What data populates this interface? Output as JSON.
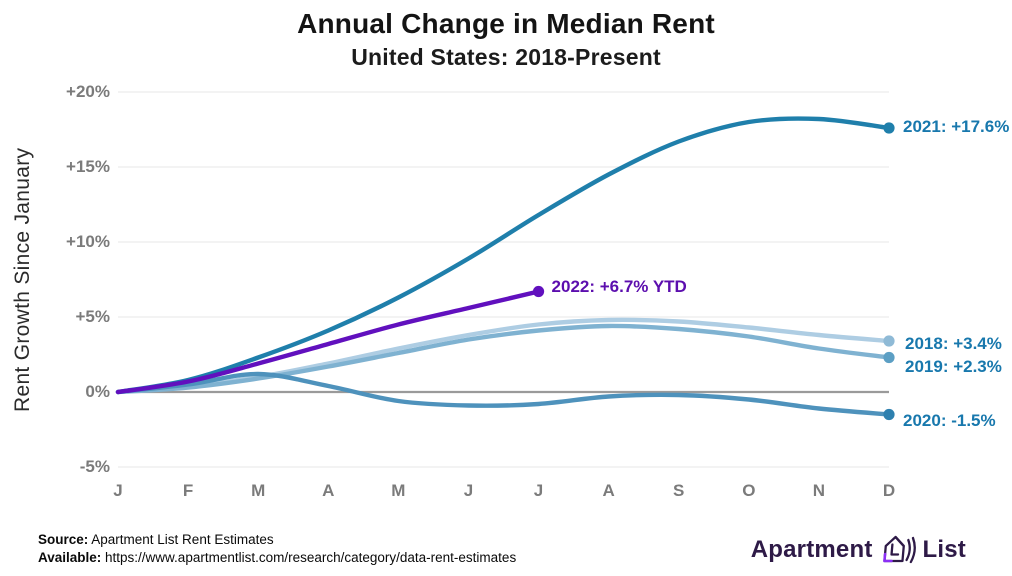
{
  "title": "Annual Change in Median Rent",
  "subtitle": "United States: 2018-Present",
  "chart_data": {
    "type": "line",
    "title": "Annual Change in Median Rent",
    "subtitle": "United States: 2018-Present",
    "xlabel": "",
    "ylabel": "Rent Growth Since January",
    "ylim": [
      -5,
      20
    ],
    "grid": true,
    "legend_position": "end-of-line-labels",
    "categories": [
      "J",
      "F",
      "M",
      "A",
      "M",
      "J",
      "J",
      "A",
      "S",
      "O",
      "N",
      "D"
    ],
    "y_ticks": [
      {
        "value": 20,
        "label": "+20%"
      },
      {
        "value": 15,
        "label": "+15%"
      },
      {
        "value": 10,
        "label": "+10%"
      },
      {
        "value": 5,
        "label": "+5%"
      },
      {
        "value": 0,
        "label": "0%"
      },
      {
        "value": -5,
        "label": "-5%"
      }
    ],
    "grid_color": "#efefef",
    "zero_line_color": "#9a9a9a",
    "series": [
      {
        "name": "2018",
        "label": "2018: +3.4%",
        "color": "#AECDE3",
        "dot_color": "#8FBAD6",
        "label_color": "#1878AD",
        "values": [
          0,
          0.4,
          1.0,
          1.9,
          2.9,
          3.8,
          4.5,
          4.8,
          4.7,
          4.3,
          3.8,
          3.4
        ]
      },
      {
        "name": "2019",
        "label": "2019: +2.3%",
        "color": "#7FB2D1",
        "dot_color": "#5C9FC4",
        "label_color": "#1878AD",
        "values": [
          0,
          0.3,
          0.9,
          1.7,
          2.6,
          3.5,
          4.1,
          4.4,
          4.2,
          3.7,
          2.9,
          2.3
        ]
      },
      {
        "name": "2020",
        "label": "2020: -1.5%",
        "color": "#4E92BC",
        "dot_color": "#2E80AF",
        "label_color": "#1878AD",
        "values": [
          0,
          0.5,
          1.2,
          0.4,
          -0.6,
          -0.9,
          -0.8,
          -0.3,
          -0.2,
          -0.5,
          -1.1,
          -1.5
        ]
      },
      {
        "name": "2021",
        "label": "2021: +17.6%",
        "color": "#1F7FAB",
        "dot_color": "#1F7FAB",
        "label_color": "#1878AD",
        "values": [
          0,
          0.8,
          2.3,
          4.1,
          6.3,
          8.9,
          11.8,
          14.5,
          16.7,
          18.0,
          18.2,
          17.6
        ]
      },
      {
        "name": "2022",
        "label": "2022: +6.7% YTD",
        "color": "#6110BE",
        "dot_color": "#6110BE",
        "label_color": "#5C0EAE",
        "values": [
          0,
          0.7,
          1.9,
          3.2,
          4.5,
          5.6,
          6.7
        ]
      }
    ]
  },
  "footer": {
    "source_label": "Source:",
    "source_text": " Apartment List Rent Estimates",
    "available_label": "Available:",
    "available_text": " https://www.apartmentlist.com/research/category/data-rent-estimates"
  },
  "logo": {
    "word_left": "Apartment",
    "word_right": "List",
    "icon": "apartment-list-house-icon",
    "text_color": "#2e1a47",
    "accent_color": "#8b2ff5"
  }
}
